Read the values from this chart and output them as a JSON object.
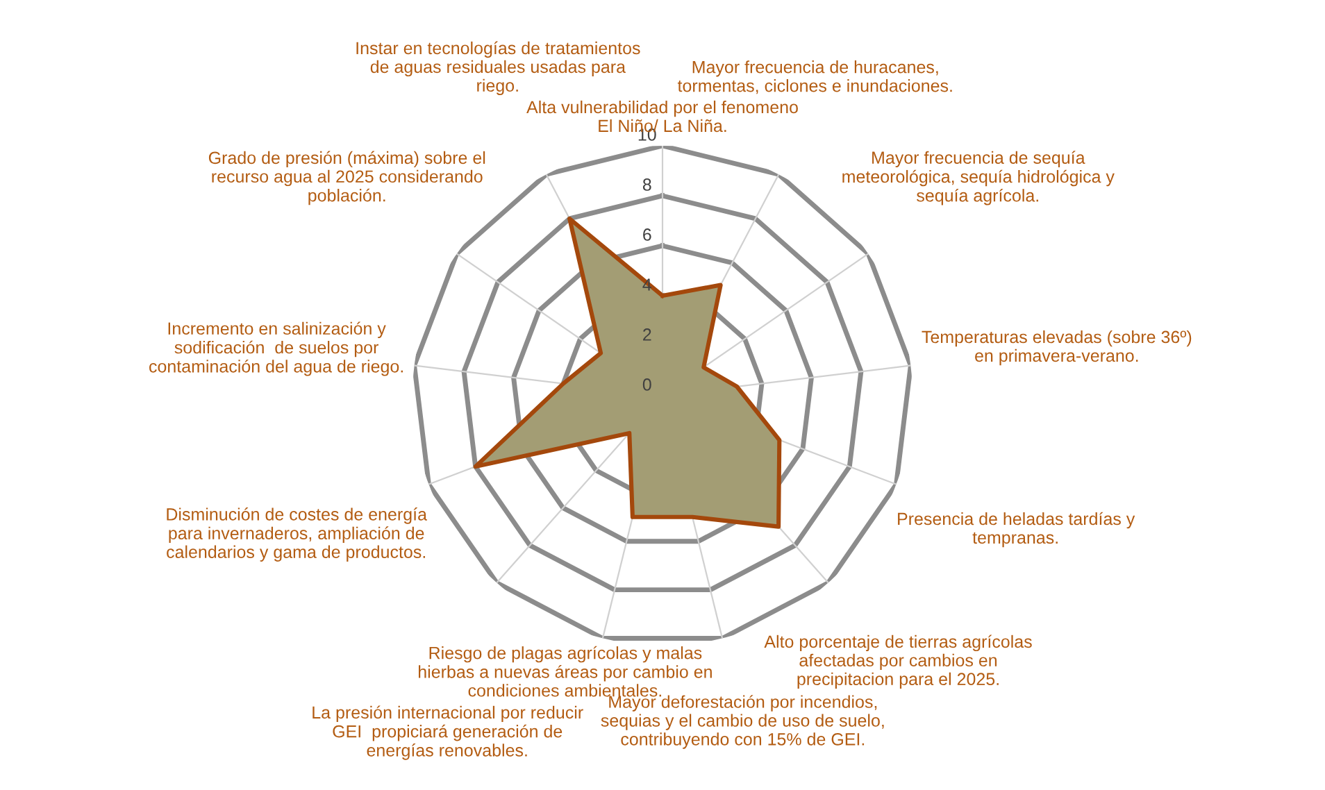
{
  "chart_data": {
    "type": "radar",
    "categories": [
      "Alta vulnerabilidad por el fenomeno\nEl Niño/ La Niña.",
      "Mayor frecuencia de huracanes,\ntormentas, ciclones e inundaciones.",
      "Mayor frecuencia de sequía\nmeteorológica, sequía hidrológica y\nsequía agrícola.",
      "Temperaturas elevadas (sobre 36º)\nen primavera-verano.",
      "Presencia de heladas tardías y\ntempranas.",
      "Alto porcentaje de tierras agrícolas\nafectadas por cambios en\nprecipitacion para el 2025.",
      "Mayor deforestación por incendios,\nsequias y el cambio de uso de suelo,\ncontribuyendo con 15% de GEI.",
      "Riesgo de plagas agrícolas y malas\nhierbas a nuevas áreas por cambio en\ncondiciones ambientales.",
      "La presión internacional por reducir\nGEI  propiciará generación de\nenergías renovables.",
      "Disminución de costes de energía\npara invernaderos, ampliación de\ncalendarios y gama de productos.",
      "Incremento en salinización y\nsodificación  de suelos por\ncontaminación del agua de riego.",
      "Grado de presión (máxima) sobre el\nrecurso agua al 2025 considerando\npoblación.",
      "Instar en tecnologías de tratamientos\nde aguas residuales usadas para\nriego."
    ],
    "series": [
      {
        "color": "#a39d74",
        "values": [
          4,
          5,
          2,
          3,
          5,
          7,
          5,
          5,
          2,
          8,
          4,
          3,
          8
        ]
      }
    ],
    "ylim": [
      0,
      10
    ],
    "yticks": [
      0,
      2,
      4,
      6,
      8,
      10
    ],
    "grid": true
  }
}
